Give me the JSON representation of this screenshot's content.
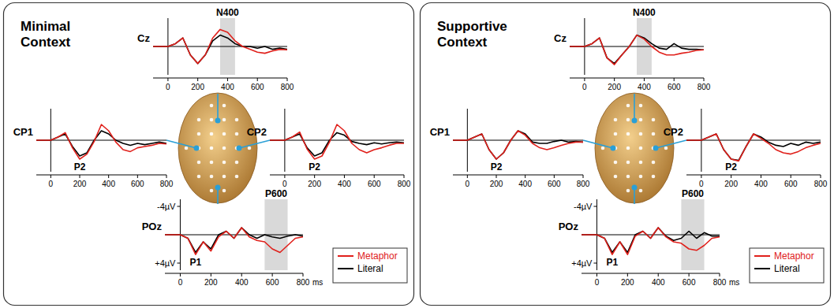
{
  "chart_data": [
    {
      "type": "line",
      "title": "Minimal Context",
      "subplots": [
        {
          "title": "Cz",
          "x": [
            -100,
            -50,
            0,
            50,
            100,
            150,
            200,
            250,
            300,
            350,
            400,
            450,
            500,
            550,
            600,
            650,
            700,
            750,
            800
          ],
          "xlim": [
            -100,
            800
          ],
          "xticks": [
            0,
            200,
            400,
            600,
            800
          ],
          "ylim": [
            5,
            -5
          ],
          "yticks": [],
          "tick_labels": "x",
          "annotations": [
            {
              "text": "N400",
              "x": [
                350,
                450
              ]
            }
          ],
          "series": [
            {
              "name": "Metaphor",
              "color": "#e0201b",
              "values": [
                0,
                0,
                0,
                -0.5,
                -1.5,
                1.5,
                3,
                1.5,
                -1.5,
                -3,
                -2.5,
                -1,
                0,
                0.5,
                1,
                1.2,
                0.8,
                0.5,
                0.6
              ]
            },
            {
              "name": "Literal",
              "color": "#000000",
              "values": [
                0,
                0,
                0,
                -0.5,
                -1.5,
                1.5,
                3,
                1.5,
                -1,
                -2,
                -1.5,
                -0.5,
                0,
                0,
                0.3,
                0,
                0.5,
                0.3,
                0.5
              ]
            }
          ]
        },
        {
          "title": "CP1",
          "x": [
            -100,
            -50,
            0,
            50,
            100,
            150,
            200,
            250,
            300,
            350,
            400,
            450,
            500,
            550,
            600,
            650,
            700,
            750,
            800
          ],
          "xlim": [
            -100,
            800
          ],
          "xticks": [
            0,
            200,
            400,
            600,
            800
          ],
          "ylim": [
            5,
            -5
          ],
          "yticks": [],
          "tick_labels": "x",
          "annotations": [
            {
              "text": "P2",
              "x": 200
            }
          ],
          "series": [
            {
              "name": "Metaphor",
              "color": "#e0201b",
              "values": [
                0,
                0,
                0,
                -0.5,
                -1.2,
                1.2,
                3,
                2.2,
                0.2,
                -2.5,
                -1.5,
                0.3,
                1.5,
                1.8,
                1.2,
                1,
                0.8,
                0.5,
                0.6
              ]
            },
            {
              "name": "Literal",
              "color": "#000000",
              "values": [
                0,
                0,
                0,
                -0.5,
                -1,
                1,
                2.5,
                2,
                0,
                -1.5,
                -1,
                0,
                0.5,
                0.8,
                0.5,
                0.7,
                0.5,
                0.3,
                0.5
              ]
            }
          ]
        },
        {
          "title": "CP2",
          "x": [
            -100,
            -50,
            0,
            50,
            100,
            150,
            200,
            250,
            300,
            350,
            400,
            450,
            500,
            550,
            600,
            650,
            700,
            750,
            800
          ],
          "xlim": [
            -100,
            800
          ],
          "xticks": [
            0,
            200,
            400,
            600,
            800
          ],
          "ylim": [
            5,
            -5
          ],
          "yticks": [],
          "tick_labels": "x",
          "annotations": [
            {
              "text": "P2",
              "x": 200
            }
          ],
          "series": [
            {
              "name": "Metaphor",
              "color": "#e0201b",
              "values": [
                0,
                0,
                0,
                -0.5,
                -1.3,
                1.4,
                3,
                2.5,
                0.3,
                -2.5,
                -1.5,
                0.5,
                1.5,
                2,
                1.5,
                1.2,
                0.8,
                0.5,
                0.5
              ]
            },
            {
              "name": "Literal",
              "color": "#000000",
              "values": [
                0,
                0,
                0,
                -0.5,
                -1,
                1.2,
                2.5,
                2,
                0,
                -1.2,
                -0.8,
                0.2,
                0.5,
                0.7,
                0.4,
                0.6,
                0.4,
                0.3,
                0.4
              ]
            }
          ]
        },
        {
          "title": "POz",
          "x": [
            -100,
            -50,
            0,
            50,
            100,
            150,
            200,
            250,
            300,
            350,
            400,
            450,
            500,
            550,
            600,
            650,
            700,
            750,
            800
          ],
          "xlim": [
            -100,
            800
          ],
          "xticks": [
            0,
            200,
            400,
            600,
            800
          ],
          "x_label": "ms",
          "ylim": [
            5,
            -5
          ],
          "yticks": [
            {
              "value": -4,
              "label": "-4µV"
            },
            {
              "value": 4,
              "label": "+4µV"
            }
          ],
          "tick_labels": true,
          "legend": "right",
          "annotations": [
            {
              "text": "P600",
              "x": [
                550,
                700
              ]
            },
            {
              "text": "P1",
              "x": 100
            }
          ],
          "series": [
            {
              "name": "Metaphor",
              "color": "#e0201b",
              "values": [
                0,
                0,
                0,
                0.5,
                2.8,
                1,
                2.3,
                0.3,
                -0.5,
                0.5,
                -1,
                0.3,
                0.8,
                1,
                2,
                2.5,
                1.5,
                0.5,
                0.3
              ]
            },
            {
              "name": "Literal",
              "color": "#000000",
              "values": [
                0,
                0,
                0,
                0.5,
                2.5,
                1,
                2,
                0,
                -0.5,
                0.5,
                -1,
                0,
                0.5,
                0,
                0.3,
                0.5,
                0.2,
                0,
                0.2
              ]
            }
          ]
        }
      ]
    },
    {
      "type": "line",
      "title": "Supportive Context",
      "subplots": [
        {
          "title": "Cz",
          "x": [
            -100,
            -50,
            0,
            50,
            100,
            150,
            200,
            250,
            300,
            350,
            400,
            450,
            500,
            550,
            600,
            650,
            700,
            750,
            800
          ],
          "xlim": [
            -100,
            800
          ],
          "xticks": [
            0,
            200,
            400,
            600,
            800
          ],
          "ylim": [
            5,
            -5
          ],
          "yticks": [],
          "tick_labels": "x",
          "annotations": [
            {
              "text": "N400",
              "x": [
                350,
                450
              ]
            }
          ],
          "series": [
            {
              "name": "Metaphor",
              "color": "#e0201b",
              "values": [
                0,
                0,
                0,
                -0.5,
                -1.5,
                2,
                3.2,
                1.5,
                0,
                -2,
                -1.3,
                0,
                1,
                1.5,
                1.5,
                1.2,
                1,
                0.7,
                0.6
              ]
            },
            {
              "name": "Literal",
              "color": "#000000",
              "values": [
                0,
                0,
                0,
                -0.5,
                -1.5,
                2,
                3,
                1.5,
                0,
                -2,
                -1.5,
                -0.5,
                0.3,
                0.5,
                -0.5,
                0.3,
                0.5,
                0.5,
                0.6
              ]
            }
          ]
        },
        {
          "title": "CP1",
          "x": [
            -100,
            -50,
            0,
            50,
            100,
            150,
            200,
            250,
            300,
            350,
            400,
            450,
            500,
            550,
            600,
            650,
            700,
            750,
            800
          ],
          "xlim": [
            -100,
            800
          ],
          "xticks": [
            0,
            200,
            400,
            600,
            800
          ],
          "ylim": [
            5,
            -5
          ],
          "yticks": [],
          "tick_labels": "x",
          "annotations": [
            {
              "text": "P2",
              "x": 200
            }
          ],
          "series": [
            {
              "name": "Metaphor",
              "color": "#e0201b",
              "values": [
                0,
                0,
                0,
                -0.5,
                -1,
                1.5,
                3,
                2,
                0,
                -1.5,
                -0.8,
                0.5,
                1.2,
                1.5,
                1.2,
                0.8,
                0.5,
                0.3,
                0.3
              ]
            },
            {
              "name": "Literal",
              "color": "#000000",
              "values": [
                0,
                0,
                0,
                -0.5,
                -1,
                1.5,
                3,
                2,
                0,
                -1.5,
                -1,
                0.3,
                0.5,
                0.5,
                0.2,
                0,
                0.3,
                0.2,
                0.3
              ]
            }
          ]
        },
        {
          "title": "CP2",
          "x": [
            -100,
            -50,
            0,
            50,
            100,
            150,
            200,
            250,
            300,
            350,
            400,
            450,
            500,
            550,
            600,
            650,
            700,
            750,
            800
          ],
          "xlim": [
            -100,
            800
          ],
          "xticks": [
            0,
            200,
            400,
            600,
            800
          ],
          "ylim": [
            5,
            -5
          ],
          "yticks": [],
          "tick_labels": "x",
          "annotations": [
            {
              "text": "P2",
              "x": 200
            }
          ],
          "series": [
            {
              "name": "Metaphor",
              "color": "#e0201b",
              "values": [
                0,
                0,
                0,
                -0.5,
                -1,
                1.5,
                3,
                3.3,
                1,
                -1,
                -0.3,
                0.5,
                1.5,
                2,
                2.2,
                1.8,
                1.2,
                0.8,
                0.5
              ]
            },
            {
              "name": "Literal",
              "color": "#000000",
              "values": [
                0,
                0,
                0,
                -0.5,
                -1,
                1.5,
                3,
                3.2,
                1,
                -1,
                -0.5,
                0.3,
                0.8,
                1,
                0.5,
                0.8,
                0.3,
                0.5,
                0.3
              ]
            }
          ]
        },
        {
          "title": "POz",
          "x": [
            -100,
            -50,
            0,
            50,
            100,
            150,
            200,
            250,
            300,
            350,
            400,
            450,
            500,
            550,
            600,
            650,
            700,
            750,
            800
          ],
          "xlim": [
            -100,
            800
          ],
          "xticks": [
            0,
            200,
            400,
            600,
            800
          ],
          "x_label": "ms",
          "ylim": [
            5,
            -5
          ],
          "yticks": [
            {
              "value": -4,
              "label": "-4µV"
            },
            {
              "value": 4,
              "label": "+4µV"
            }
          ],
          "tick_labels": true,
          "legend": "right",
          "annotations": [
            {
              "text": "P600",
              "x": [
                550,
                700
              ]
            },
            {
              "text": "P1",
              "x": 100
            }
          ],
          "series": [
            {
              "name": "Metaphor",
              "color": "#e0201b",
              "values": [
                0,
                0,
                0,
                0.5,
                2.8,
                1,
                2.8,
                0.2,
                -0.5,
                0.5,
                -1,
                0.3,
                1,
                1.2,
                2,
                2.2,
                1.5,
                0.5,
                0.3
              ]
            },
            {
              "name": "Literal",
              "color": "#000000",
              "values": [
                0,
                0,
                0,
                0.5,
                2.5,
                1,
                2.5,
                0,
                -0.5,
                0.5,
                -1,
                0.2,
                0.8,
                0.5,
                -0.5,
                0.5,
                -0.3,
                0.2,
                0.2
              ]
            }
          ]
        }
      ]
    }
  ]
}
